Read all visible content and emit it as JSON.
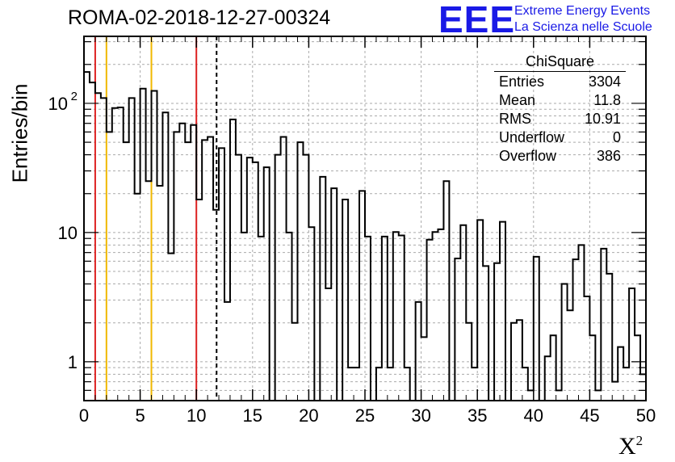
{
  "title": "ROMA-02-2018-12-27-00324",
  "logo": {
    "mark": "EEE",
    "line1": "Extreme Energy Events",
    "line2": "La Scienza nelle Scuole"
  },
  "stats": {
    "name": "ChiSquare",
    "rows": [
      {
        "label": "Entries",
        "value": "3304"
      },
      {
        "label": "Mean",
        "value": "11.8"
      },
      {
        "label": "RMS",
        "value": "10.91"
      },
      {
        "label": "Underflow",
        "value": "0"
      },
      {
        "label": "Overflow",
        "value": "386"
      }
    ]
  },
  "chart_data": {
    "type": "bar",
    "style": "step-histogram",
    "xlabel": "X",
    "xlabel_superscript": "2",
    "ylabel": "Entries/bin",
    "xlim": [
      0,
      50
    ],
    "ylim": [
      0.5,
      330
    ],
    "yscale": "log",
    "bin_width": 0.5,
    "x_ticks": [
      0,
      5,
      10,
      15,
      20,
      25,
      30,
      35,
      40,
      45,
      50
    ],
    "y_ticks": [
      {
        "value": 1,
        "label": "1"
      },
      {
        "value": 10,
        "label": "10"
      },
      {
        "value": 100,
        "label": "10",
        "exponent": "2"
      }
    ],
    "grid": true,
    "values": [
      175,
      145,
      120,
      110,
      60,
      92,
      93,
      50,
      110,
      20,
      130,
      25,
      125,
      23,
      85,
      6.9,
      60,
      70,
      50,
      68,
      18,
      52,
      55,
      15,
      45,
      2.9,
      75,
      40,
      10,
      38,
      35,
      9.3,
      32,
      0.5,
      40,
      55,
      10,
      2,
      50,
      40,
      11,
      0.5,
      27,
      3.7,
      22,
      0.5,
      18,
      0.9,
      0.9,
      21,
      9.3,
      0.5,
      0.9,
      9.3,
      0.9,
      10.1,
      9.5,
      0.9,
      0.5,
      2.9,
      1.55,
      8.8,
      10.1,
      10.6,
      25,
      0.5,
      6.3,
      11.4,
      2,
      0.9,
      12.5,
      5.5,
      0.5,
      5.8,
      12.1,
      0.5,
      2,
      2.1,
      0.9,
      0.6,
      6.5,
      0.5,
      1.1,
      1.6,
      0.6,
      4,
      2.5,
      6.2,
      8,
      3.2,
      1.6,
      0.6,
      7.5,
      4.8,
      0.7,
      1.3,
      0.9,
      3.7,
      1.6,
      0.8
    ],
    "lines": [
      {
        "x": 1,
        "color": "#dd2222",
        "style": "solid"
      },
      {
        "x": 2,
        "color": "#f0b800",
        "style": "solid"
      },
      {
        "x": 6,
        "color": "#f0b800",
        "style": "solid"
      },
      {
        "x": 10,
        "color": "#dd2222",
        "style": "solid"
      },
      {
        "x": 11.8,
        "color": "#000000",
        "style": "dashed"
      }
    ]
  }
}
